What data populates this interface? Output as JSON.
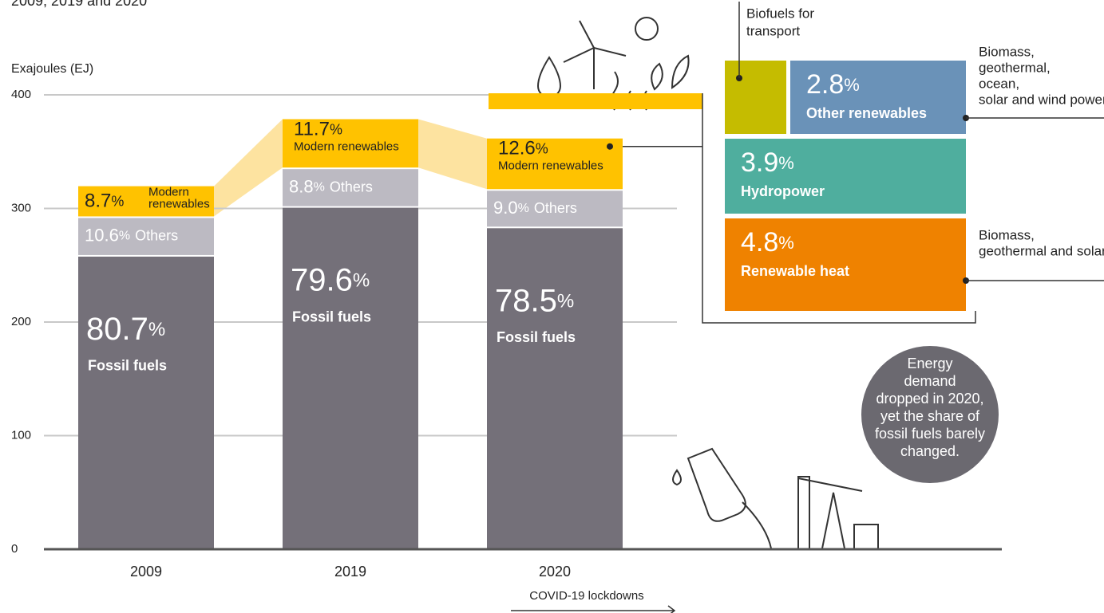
{
  "chart_data": {
    "type": "stacked_bar",
    "subtitle": "2009, 2019 and 2020",
    "y_label": "Exajoules (EJ)",
    "categories": [
      "2009",
      "2019",
      "2020"
    ],
    "ylim": [
      0,
      400
    ],
    "yticks": [
      0,
      100,
      200,
      300,
      400
    ],
    "grid": true,
    "series": [
      {
        "name": "Fossil fuels",
        "color": "#747079",
        "values": [
          259,
          302,
          284
        ],
        "shares": [
          "80.7%",
          "79.6%",
          "78.5%"
        ]
      },
      {
        "name": "Others",
        "color": "#bcbac2",
        "values": [
          34,
          34,
          33
        ],
        "shares": [
          "10.6%",
          "8.8%",
          "9.0%"
        ]
      },
      {
        "name": "Modern renewables",
        "color": "#ffc200",
        "values": [
          28,
          44,
          46
        ],
        "shares": [
          "8.7%",
          "11.7%",
          "12.6%"
        ]
      }
    ],
    "annotation": "COVID-19 lockdowns",
    "note": "Energy demand dropped in 2020, yet the share of fossil fuels barely changed.",
    "breakdown": [
      {
        "name": "Biofuels for transport",
        "value": 1.1,
        "color": "#c5bc00"
      },
      {
        "name": "Other renewables",
        "value": 2.8,
        "value_label": "2.8%",
        "color": "#6a92b8",
        "detail": "Biomass, geothermal, ocean, solar and wind power"
      },
      {
        "name": "Hydropower",
        "value": 3.9,
        "value_label": "3.9%",
        "color": "#4fae9e"
      },
      {
        "name": "Renewable heat",
        "value": 4.8,
        "value_label": "4.8%",
        "color": "#ef8200",
        "detail": "Biomass, geothermal and solar"
      }
    ]
  }
}
